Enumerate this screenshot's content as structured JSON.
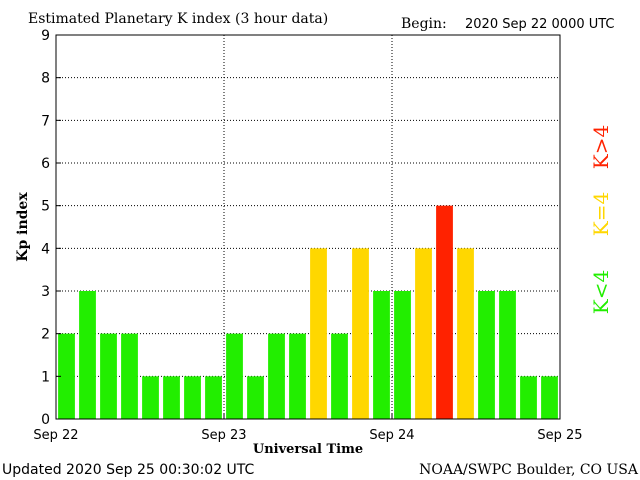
{
  "chart_data": {
    "type": "bar",
    "title": "Estimated Planetary K index (3 hour data)",
    "begin_label": "Begin:",
    "begin_value": "2020 Sep 22 0000 UTC",
    "ylabel": "Kp index",
    "xlabel": "Universal Time",
    "ylim": [
      0,
      9
    ],
    "yticks": [
      "0",
      "1",
      "2",
      "3",
      "4",
      "5",
      "6",
      "7",
      "8",
      "9"
    ],
    "xticks": [
      "Sep 22",
      "Sep 23",
      "Sep 24",
      "Sep 25"
    ],
    "grid": true,
    "values": [
      2,
      3,
      2,
      2,
      1,
      1,
      1,
      1,
      2,
      1,
      2,
      2,
      4,
      2,
      4,
      3,
      3,
      4,
      5,
      4,
      3,
      3,
      1,
      1
    ],
    "legend": [
      {
        "label": "K<4",
        "color": "#22ee00"
      },
      {
        "label": "K=4",
        "color": "#ffd700"
      },
      {
        "label": "K>4",
        "color": "#ff2200"
      }
    ]
  },
  "footer": {
    "updated": "Updated 2020 Sep 25 00:30:02 UTC",
    "source": "NOAA/SWPC Boulder, CO USA"
  }
}
